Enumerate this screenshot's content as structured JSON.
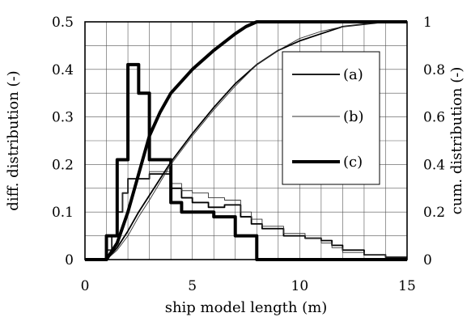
{
  "chart_data": {
    "type": "line",
    "title": "",
    "xlabel": "ship model length (m)",
    "ylabel_left": "diff. distribution (-)",
    "ylabel_right": "cum. distribution (-)",
    "xlim": [
      0,
      15
    ],
    "ylim_left": [
      0,
      0.5
    ],
    "ylim_right": [
      0,
      1
    ],
    "x_ticks": [
      0,
      5,
      10,
      15
    ],
    "x_tick_labels": [
      "0",
      "5",
      "10",
      "15"
    ],
    "y_left_ticks": [
      0,
      0.1,
      0.2,
      0.3,
      0.4,
      0.5
    ],
    "y_left_tick_labels": [
      "0",
      "0.1",
      "0.2",
      "0.3",
      "0.4",
      "0.5"
    ],
    "y_right_ticks": [
      0,
      0.2,
      0.4,
      0.6,
      0.8,
      1
    ],
    "y_right_tick_labels": [
      "0",
      "0.2",
      "0.4",
      "0.6",
      "0.8",
      "1"
    ],
    "grid": true,
    "grid_x_step": 1,
    "grid_y_step": 0.05,
    "legend_position": "upper-right",
    "legend": [
      {
        "label": "(a)",
        "style": "medium"
      },
      {
        "label": "(b)",
        "style": "thin"
      },
      {
        "label": "(c)",
        "style": "thick"
      }
    ],
    "series": [
      {
        "legend": "(a)",
        "kind": "differential",
        "axis": "left",
        "style": "medium",
        "points": [
          [
            0,
            0
          ],
          [
            1.0,
            0
          ],
          [
            1.0,
            0.02
          ],
          [
            1.25,
            0.02
          ],
          [
            1.25,
            0.05
          ],
          [
            1.5,
            0.05
          ],
          [
            1.5,
            0.1
          ],
          [
            1.75,
            0.1
          ],
          [
            1.75,
            0.14
          ],
          [
            2.0,
            0.14
          ],
          [
            2.0,
            0.17
          ],
          [
            3.0,
            0.17
          ],
          [
            3.0,
            0.18
          ],
          [
            4.0,
            0.18
          ],
          [
            4.0,
            0.15
          ],
          [
            4.5,
            0.15
          ],
          [
            4.5,
            0.13
          ],
          [
            5.0,
            0.13
          ],
          [
            5.0,
            0.12
          ],
          [
            5.75,
            0.12
          ],
          [
            5.75,
            0.11
          ],
          [
            6.5,
            0.11
          ],
          [
            6.5,
            0.115
          ],
          [
            7.25,
            0.115
          ],
          [
            7.25,
            0.09
          ],
          [
            7.75,
            0.09
          ],
          [
            7.75,
            0.075
          ],
          [
            8.25,
            0.075
          ],
          [
            8.25,
            0.065
          ],
          [
            9.25,
            0.065
          ],
          [
            9.25,
            0.05
          ],
          [
            10.25,
            0.05
          ],
          [
            10.25,
            0.045
          ],
          [
            11.0,
            0.045
          ],
          [
            11.0,
            0.04
          ],
          [
            11.5,
            0.04
          ],
          [
            11.5,
            0.03
          ],
          [
            12.0,
            0.03
          ],
          [
            12.0,
            0.02
          ],
          [
            13.0,
            0.02
          ],
          [
            13.0,
            0.01
          ],
          [
            14.0,
            0.01
          ],
          [
            14.0,
            0.005
          ],
          [
            15,
            0.005
          ]
        ]
      },
      {
        "legend": "(b)",
        "kind": "differential",
        "axis": "left",
        "style": "thin",
        "points": [
          [
            0,
            0
          ],
          [
            1.0,
            0
          ],
          [
            1.0,
            0.02
          ],
          [
            1.25,
            0.02
          ],
          [
            1.25,
            0.05
          ],
          [
            1.5,
            0.05
          ],
          [
            1.5,
            0.1
          ],
          [
            1.75,
            0.1
          ],
          [
            1.75,
            0.14
          ],
          [
            2.0,
            0.14
          ],
          [
            2.0,
            0.17
          ],
          [
            3.0,
            0.17
          ],
          [
            3.0,
            0.185
          ],
          [
            4.0,
            0.185
          ],
          [
            4.0,
            0.16
          ],
          [
            4.5,
            0.16
          ],
          [
            4.5,
            0.145
          ],
          [
            5.0,
            0.145
          ],
          [
            5.0,
            0.14
          ],
          [
            5.75,
            0.14
          ],
          [
            5.75,
            0.13
          ],
          [
            6.5,
            0.13
          ],
          [
            6.5,
            0.125
          ],
          [
            7.25,
            0.125
          ],
          [
            7.25,
            0.1
          ],
          [
            7.75,
            0.1
          ],
          [
            7.75,
            0.085
          ],
          [
            8.25,
            0.085
          ],
          [
            8.25,
            0.07
          ],
          [
            9.25,
            0.07
          ],
          [
            9.25,
            0.055
          ],
          [
            10.25,
            0.055
          ],
          [
            10.25,
            0.045
          ],
          [
            11.0,
            0.045
          ],
          [
            11.0,
            0.035
          ],
          [
            11.5,
            0.035
          ],
          [
            11.5,
            0.025
          ],
          [
            12.0,
            0.025
          ],
          [
            12.0,
            0.015
          ],
          [
            13.0,
            0.015
          ],
          [
            13.0,
            0.01
          ],
          [
            14.0,
            0.01
          ],
          [
            14.0,
            0.005
          ],
          [
            15,
            0.005
          ]
        ]
      },
      {
        "legend": "(c)",
        "kind": "differential",
        "axis": "left",
        "style": "thick",
        "points": [
          [
            0,
            0
          ],
          [
            1.0,
            0
          ],
          [
            1.0,
            0.05
          ],
          [
            1.5,
            0.05
          ],
          [
            1.5,
            0.21
          ],
          [
            2.0,
            0.21
          ],
          [
            2.0,
            0.41
          ],
          [
            2.5,
            0.41
          ],
          [
            2.5,
            0.35
          ],
          [
            3.0,
            0.35
          ],
          [
            3.0,
            0.21
          ],
          [
            3.5,
            0.21
          ],
          [
            3.5,
            0.21
          ],
          [
            4.0,
            0.21
          ],
          [
            4.0,
            0.12
          ],
          [
            4.5,
            0.12
          ],
          [
            4.5,
            0.1
          ],
          [
            5.0,
            0.1
          ],
          [
            5.0,
            0.1
          ],
          [
            6.0,
            0.1
          ],
          [
            6.0,
            0.09
          ],
          [
            7.0,
            0.09
          ],
          [
            7.0,
            0.05
          ],
          [
            8.0,
            0.05
          ],
          [
            8.0,
            0
          ],
          [
            15,
            0
          ]
        ]
      },
      {
        "legend": "(a)",
        "kind": "cumulative",
        "axis": "right",
        "style": "medium",
        "points": [
          [
            0,
            0
          ],
          [
            1,
            0
          ],
          [
            1.5,
            0.05
          ],
          [
            2,
            0.12
          ],
          [
            2.5,
            0.2
          ],
          [
            3,
            0.27
          ],
          [
            4,
            0.41
          ],
          [
            5,
            0.53
          ],
          [
            6,
            0.64
          ],
          [
            7,
            0.74
          ],
          [
            8,
            0.82
          ],
          [
            9,
            0.88
          ],
          [
            10,
            0.92
          ],
          [
            11,
            0.95
          ],
          [
            12,
            0.98
          ],
          [
            13,
            0.99
          ],
          [
            14,
            1.0
          ],
          [
            15,
            1.0
          ]
        ]
      },
      {
        "legend": "(b)",
        "kind": "cumulative",
        "axis": "right",
        "style": "thin",
        "points": [
          [
            0,
            0
          ],
          [
            1,
            0
          ],
          [
            1.5,
            0.04
          ],
          [
            2,
            0.1
          ],
          [
            2.5,
            0.18
          ],
          [
            3,
            0.25
          ],
          [
            4,
            0.4
          ],
          [
            5,
            0.52
          ],
          [
            6,
            0.63
          ],
          [
            7,
            0.73
          ],
          [
            8,
            0.82
          ],
          [
            9,
            0.88
          ],
          [
            10,
            0.93
          ],
          [
            11,
            0.96
          ],
          [
            12,
            0.98
          ],
          [
            13,
            0.99
          ],
          [
            14,
            1.0
          ],
          [
            15,
            1.0
          ]
        ]
      },
      {
        "legend": "(c)",
        "kind": "cumulative",
        "axis": "right",
        "style": "thick",
        "points": [
          [
            0,
            0
          ],
          [
            1,
            0
          ],
          [
            1.5,
            0.07
          ],
          [
            2,
            0.2
          ],
          [
            2.5,
            0.36
          ],
          [
            3,
            0.52
          ],
          [
            3.5,
            0.62
          ],
          [
            4,
            0.7
          ],
          [
            5,
            0.8
          ],
          [
            6,
            0.88
          ],
          [
            7,
            0.95
          ],
          [
            7.5,
            0.98
          ],
          [
            8,
            1.0
          ],
          [
            15,
            1.0
          ]
        ]
      }
    ]
  }
}
